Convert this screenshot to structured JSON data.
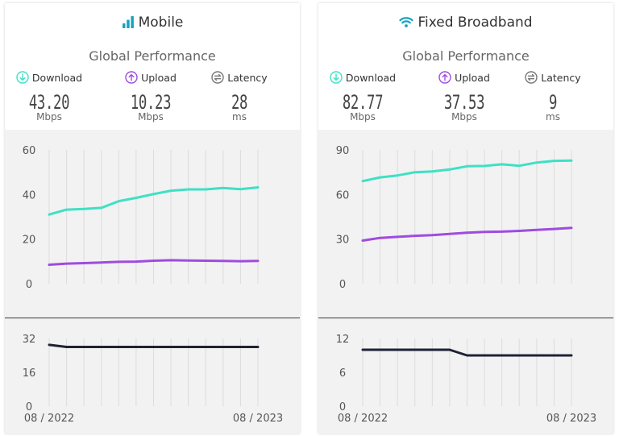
{
  "colors": {
    "download": "#3fe0c5",
    "upload": "#a04be0",
    "latency": "#1f2235",
    "grid": "#dcdcdc",
    "icon_teal": "#1aa3c0"
  },
  "panels": [
    {
      "title": "Mobile",
      "icon": "signal-bars-icon",
      "subtitle": "Global Performance",
      "metrics": {
        "download": {
          "label": "Download",
          "value": "43.20",
          "unit": "Mbps"
        },
        "upload": {
          "label": "Upload",
          "value": "10.23",
          "unit": "Mbps"
        },
        "latency": {
          "label": "Latency",
          "value": "28",
          "unit": "ms"
        }
      },
      "x_start": "08 / 2022",
      "x_end": "08 / 2023"
    },
    {
      "title": "Fixed Broadband",
      "icon": "wifi-icon",
      "subtitle": "Global Performance",
      "metrics": {
        "download": {
          "label": "Download",
          "value": "82.77",
          "unit": "Mbps"
        },
        "upload": {
          "label": "Upload",
          "value": "37.53",
          "unit": "Mbps"
        },
        "latency": {
          "label": "Latency",
          "value": "9",
          "unit": "ms"
        }
      },
      "x_start": "08 / 2022",
      "x_end": "08 / 2023"
    }
  ],
  "chart_data": [
    {
      "type": "line",
      "panel": "Mobile",
      "x": [
        "08 / 2022",
        "09 / 2022",
        "10 / 2022",
        "11 / 2022",
        "12 / 2022",
        "01 / 2023",
        "02 / 2023",
        "03 / 2023",
        "04 / 2023",
        "05 / 2023",
        "06 / 2023",
        "07 / 2023",
        "08 / 2023"
      ],
      "x_tick_labels": [
        "08 / 2022",
        "08 / 2023"
      ],
      "ylim": [
        0,
        60
      ],
      "yticks": [
        0,
        20,
        40,
        60
      ],
      "grid": "vertical",
      "series": [
        {
          "key": "download",
          "values": [
            31,
            33.2,
            33.5,
            34,
            37,
            38.5,
            40.2,
            41.7,
            42.3,
            42.3,
            42.9,
            42.4,
            43.2
          ]
        },
        {
          "key": "upload",
          "values": [
            8.5,
            9,
            9.2,
            9.5,
            9.8,
            9.9,
            10.3,
            10.5,
            10.4,
            10.3,
            10.2,
            10.1,
            10.23
          ]
        }
      ]
    },
    {
      "type": "line",
      "panel": "Mobile",
      "x": [
        "08 / 2022",
        "09 / 2022",
        "10 / 2022",
        "11 / 2022",
        "12 / 2022",
        "01 / 2023",
        "02 / 2023",
        "03 / 2023",
        "04 / 2023",
        "05 / 2023",
        "06 / 2023",
        "07 / 2023",
        "08 / 2023"
      ],
      "ylim": [
        0,
        32
      ],
      "yticks": [
        0,
        16,
        32
      ],
      "grid": "vertical",
      "series": [
        {
          "key": "latency",
          "values": [
            29,
            28,
            28,
            28,
            28,
            28,
            28,
            28,
            28,
            28,
            28,
            28,
            28
          ]
        }
      ]
    },
    {
      "type": "line",
      "panel": "Fixed Broadband",
      "x": [
        "08 / 2022",
        "09 / 2022",
        "10 / 2022",
        "11 / 2022",
        "12 / 2022",
        "01 / 2023",
        "02 / 2023",
        "03 / 2023",
        "04 / 2023",
        "05 / 2023",
        "06 / 2023",
        "07 / 2023",
        "08 / 2023"
      ],
      "x_tick_labels": [
        "08 / 2022",
        "08 / 2023"
      ],
      "ylim": [
        0,
        90
      ],
      "yticks": [
        0,
        30,
        60,
        90
      ],
      "grid": "vertical",
      "series": [
        {
          "key": "download",
          "values": [
            69,
            71.5,
            72.8,
            75,
            75.5,
            76.8,
            79,
            79.2,
            80.3,
            79.3,
            81.5,
            82.6,
            82.77
          ]
        },
        {
          "key": "upload",
          "values": [
            29,
            30.8,
            31.5,
            32.2,
            32.7,
            33.5,
            34.3,
            34.8,
            35,
            35.5,
            36.2,
            36.8,
            37.53
          ]
        }
      ]
    },
    {
      "type": "line",
      "panel": "Fixed Broadband",
      "x": [
        "08 / 2022",
        "09 / 2022",
        "10 / 2022",
        "11 / 2022",
        "12 / 2022",
        "01 / 2023",
        "02 / 2023",
        "03 / 2023",
        "04 / 2023",
        "05 / 2023",
        "06 / 2023",
        "07 / 2023",
        "08 / 2023"
      ],
      "ylim": [
        0,
        12
      ],
      "yticks": [
        0,
        6,
        12
      ],
      "grid": "vertical",
      "series": [
        {
          "key": "latency",
          "values": [
            10,
            10,
            10,
            10,
            10,
            10,
            9,
            9,
            9,
            9,
            9,
            9,
            9
          ]
        }
      ]
    }
  ]
}
